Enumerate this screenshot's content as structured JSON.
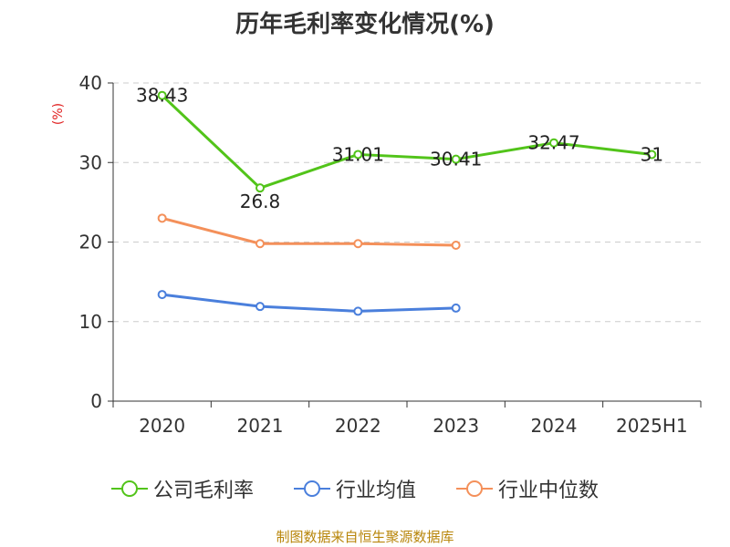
{
  "chart_data": {
    "type": "line",
    "title": "历年毛利率变化情况(%)",
    "ylabel": "(%)",
    "xlabel": "",
    "categories": [
      "2020",
      "2021",
      "2022",
      "2023",
      "2024",
      "2025H1"
    ],
    "ylim": [
      0,
      40
    ],
    "yticks": [
      0,
      10,
      20,
      30,
      40
    ],
    "grid": true,
    "legend_position": "bottom",
    "series": [
      {
        "name": "公司毛利率",
        "color": "#52c41a",
        "values": [
          38.43,
          26.8,
          31.01,
          30.41,
          32.47,
          31
        ],
        "labels": [
          "38.43",
          "26.8",
          "31.01",
          "30.41",
          "32.47",
          "31"
        ]
      },
      {
        "name": "行业均值",
        "color": "#4a7fdc",
        "values": [
          13.4,
          11.9,
          11.3,
          11.7,
          null,
          null
        ]
      },
      {
        "name": "行业中位数",
        "color": "#f4905a",
        "values": [
          23.0,
          19.8,
          19.8,
          19.6,
          null,
          null
        ]
      }
    ]
  },
  "source": "制图数据来自恒生聚源数据库"
}
